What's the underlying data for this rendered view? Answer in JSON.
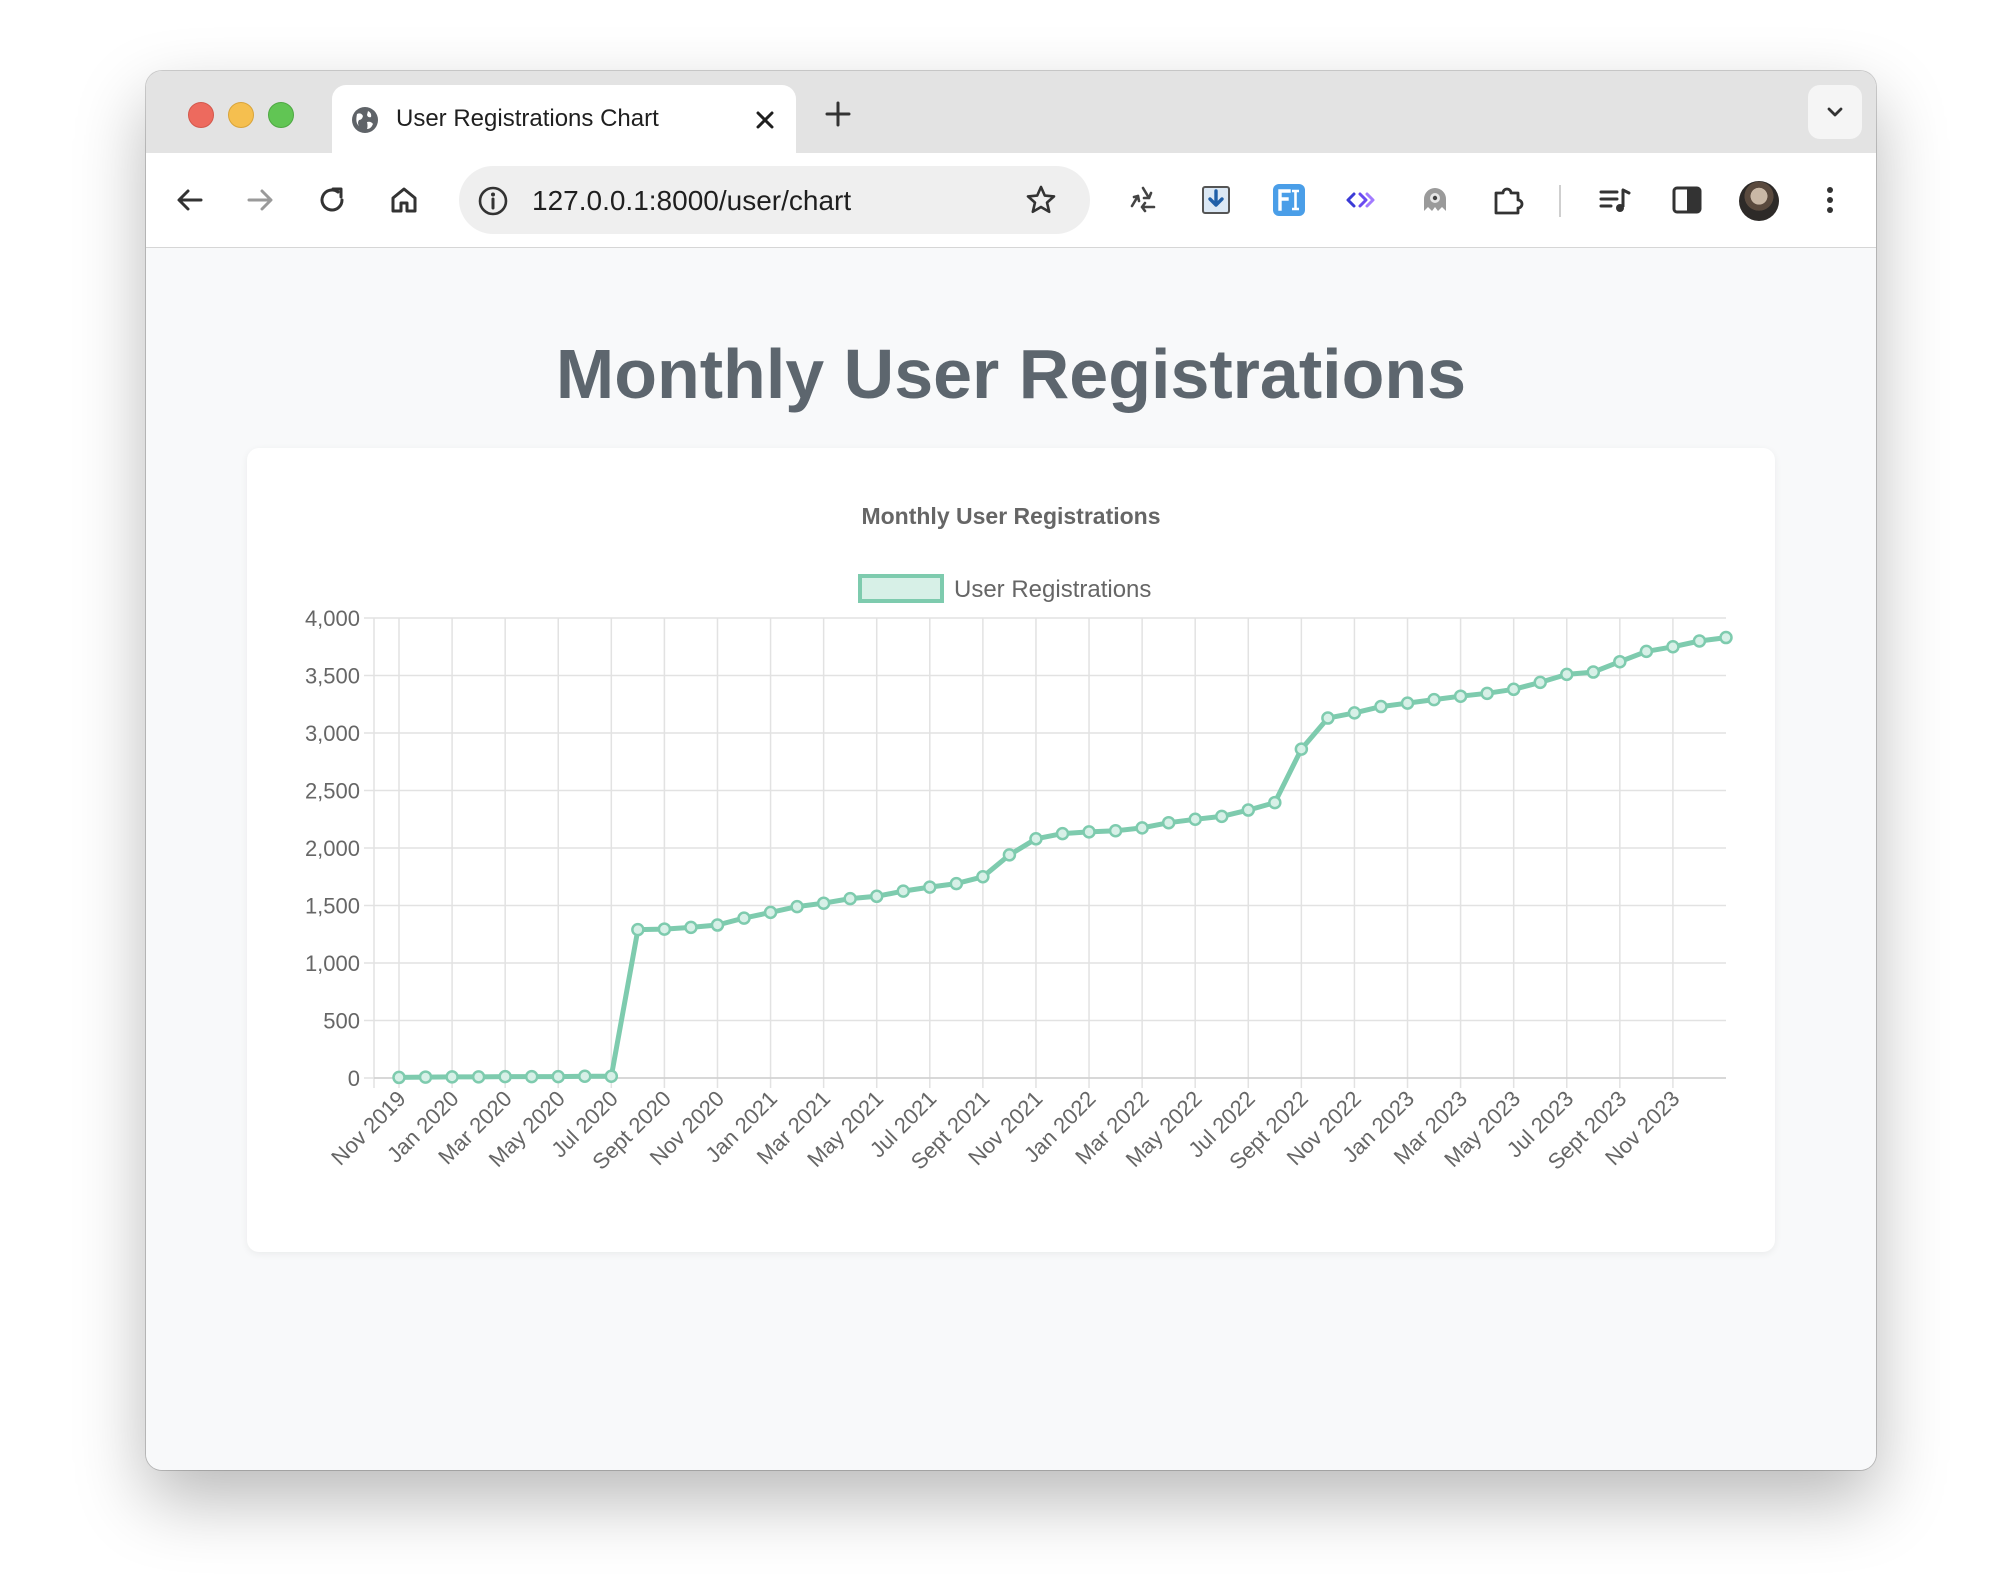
{
  "browser": {
    "tab_title": "User Registrations Chart",
    "url": "127.0.0.1:8000/user/chart"
  },
  "page": {
    "heading": "Monthly User Registrations"
  },
  "colors": {
    "series_line": "#7ecbae",
    "series_fill": "#d7f0e7",
    "heading_text": "#5d666e",
    "grid": "#e2e2e2"
  },
  "chart_data": {
    "type": "line",
    "title": "Monthly User Registrations",
    "xlabel": "",
    "ylabel": "",
    "ylim": [
      0,
      4000
    ],
    "y_ticks": [
      "0",
      "500",
      "1,000",
      "1,500",
      "2,000",
      "2,500",
      "3,000",
      "3,500",
      "4,000"
    ],
    "grid": true,
    "legend": "top-center",
    "categories": [
      "Nov 2019",
      "Dec 2019",
      "Jan 2020",
      "Feb 2020",
      "Mar 2020",
      "Apr 2020",
      "May 2020",
      "Jun 2020",
      "Jul 2020",
      "Aug 2020",
      "Sept 2020",
      "Oct 2020",
      "Nov 2020",
      "Dec 2020",
      "Jan 2021",
      "Feb 2021",
      "Mar 2021",
      "Apr 2021",
      "May 2021",
      "Jun 2021",
      "Jul 2021",
      "Aug 2021",
      "Sept 2021",
      "Oct 2021",
      "Nov 2021",
      "Dec 2021",
      "Jan 2022",
      "Feb 2022",
      "Mar 2022",
      "Apr 2022",
      "May 2022",
      "Jun 2022",
      "Jul 2022",
      "Aug 2022",
      "Sept 2022",
      "Oct 2022",
      "Nov 2022",
      "Dec 2022",
      "Jan 2023",
      "Feb 2023",
      "Mar 2023",
      "Apr 2023",
      "May 2023",
      "Jun 2023",
      "Jul 2023",
      "Aug 2023",
      "Sept 2023",
      "Oct 2023",
      "Nov 2023",
      "Dec 2023",
      "Jan 2024"
    ],
    "x_tick_labels": [
      "Nov 2019",
      "Jan 2020",
      "Mar 2020",
      "May 2020",
      "Jul 2020",
      "Sept 2020",
      "Nov 2020",
      "Jan 2021",
      "Mar 2021",
      "May 2021",
      "Jul 2021",
      "Sept 2021",
      "Nov 2021",
      "Jan 2022",
      "Mar 2022",
      "May 2022",
      "Jul 2022",
      "Sept 2022",
      "Nov 2022",
      "Jan 2023",
      "Mar 2023",
      "May 2023",
      "Jul 2023",
      "Sept 2023",
      "Nov 2023"
    ],
    "series": [
      {
        "name": "User Registrations",
        "values": [
          5,
          8,
          10,
          10,
          12,
          12,
          12,
          15,
          15,
          1290,
          1295,
          1310,
          1330,
          1390,
          1440,
          1490,
          1520,
          1560,
          1580,
          1625,
          1660,
          1690,
          1750,
          1940,
          2080,
          2125,
          2140,
          2150,
          2175,
          2220,
          2250,
          2275,
          2330,
          2395,
          2860,
          3130,
          3175,
          3230,
          3260,
          3290,
          3320,
          3345,
          3380,
          3440,
          3510,
          3530,
          3620,
          3710,
          3750,
          3800,
          3830
        ]
      }
    ]
  }
}
